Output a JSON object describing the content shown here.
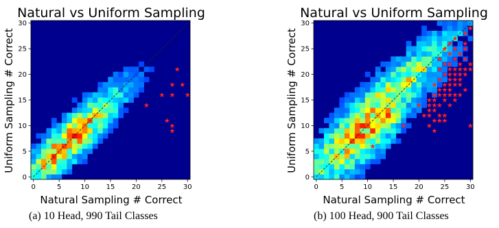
{
  "chart_data": [
    {
      "type": "heatmap",
      "title": "Natural vs Uniform Sampling",
      "xlabel": "Natural Sampling # Correct",
      "ylabel": "Uniform Sampling # Correct",
      "xlim": [
        0,
        30
      ],
      "ylim": [
        0,
        30
      ],
      "xticks": [
        "0",
        "5",
        "10",
        "15",
        "20",
        "25",
        "30"
      ],
      "yticks": [
        "0",
        "5",
        "10",
        "15",
        "20",
        "25",
        "30"
      ],
      "colormap": "jet",
      "diagonal": "dashed y = x",
      "highlight_color": "#ff2020",
      "highlighted_points": [
        {
          "x": 28,
          "y": 21
        },
        {
          "x": 27,
          "y": 18
        },
        {
          "x": 29,
          "y": 18
        },
        {
          "x": 25,
          "y": 16
        },
        {
          "x": 27,
          "y": 16
        },
        {
          "x": 30,
          "y": 16
        },
        {
          "x": 22,
          "y": 14
        },
        {
          "x": 26,
          "y": 11
        },
        {
          "x": 27,
          "y": 10
        },
        {
          "x": 27,
          "y": 9
        }
      ],
      "caption": "(a)  10 Head, 990 Tail Classes"
    },
    {
      "type": "heatmap",
      "title": "Natural vs Uniform Sampling",
      "xlabel": "Natural Sampling # Correct",
      "ylabel": "Uniform Sampling # Correct",
      "xlim": [
        0,
        30
      ],
      "ylim": [
        0,
        30
      ],
      "xticks": [
        "0",
        "5",
        "10",
        "15",
        "20",
        "25",
        "30"
      ],
      "yticks": [
        "0",
        "5",
        "10",
        "15",
        "20",
        "25",
        "30"
      ],
      "colormap": "jet",
      "diagonal": "dashed y = x",
      "highlight_color": "#ff2020",
      "highlighted_points": [
        {
          "x": 30,
          "y": 29
        },
        {
          "x": 29,
          "y": 28
        },
        {
          "x": 27,
          "y": 27
        },
        {
          "x": 26,
          "y": 26
        },
        {
          "x": 29,
          "y": 26
        },
        {
          "x": 25,
          "y": 25
        },
        {
          "x": 27,
          "y": 25
        },
        {
          "x": 29,
          "y": 25
        },
        {
          "x": 26,
          "y": 24
        },
        {
          "x": 28,
          "y": 24
        },
        {
          "x": 24,
          "y": 23
        },
        {
          "x": 27,
          "y": 23
        },
        {
          "x": 29,
          "y": 23
        },
        {
          "x": 25,
          "y": 22
        },
        {
          "x": 26,
          "y": 22
        },
        {
          "x": 28,
          "y": 22
        },
        {
          "x": 30,
          "y": 22
        },
        {
          "x": 24,
          "y": 21
        },
        {
          "x": 26,
          "y": 21
        },
        {
          "x": 27,
          "y": 21
        },
        {
          "x": 28,
          "y": 21
        },
        {
          "x": 29,
          "y": 21
        },
        {
          "x": 30,
          "y": 21
        },
        {
          "x": 25,
          "y": 20
        },
        {
          "x": 26,
          "y": 20
        },
        {
          "x": 27,
          "y": 20
        },
        {
          "x": 28,
          "y": 20
        },
        {
          "x": 29,
          "y": 20
        },
        {
          "x": 24,
          "y": 19
        },
        {
          "x": 26,
          "y": 19
        },
        {
          "x": 27,
          "y": 19
        },
        {
          "x": 28,
          "y": 19
        },
        {
          "x": 23,
          "y": 18
        },
        {
          "x": 25,
          "y": 18
        },
        {
          "x": 26,
          "y": 18
        },
        {
          "x": 27,
          "y": 18
        },
        {
          "x": 28,
          "y": 18
        },
        {
          "x": 24,
          "y": 17
        },
        {
          "x": 25,
          "y": 17
        },
        {
          "x": 26,
          "y": 17
        },
        {
          "x": 29,
          "y": 17
        },
        {
          "x": 23,
          "y": 16
        },
        {
          "x": 24,
          "y": 16
        },
        {
          "x": 25,
          "y": 16
        },
        {
          "x": 26,
          "y": 16
        },
        {
          "x": 27,
          "y": 16
        },
        {
          "x": 28,
          "y": 16
        },
        {
          "x": 22,
          "y": 15
        },
        {
          "x": 23,
          "y": 15
        },
        {
          "x": 25,
          "y": 15
        },
        {
          "x": 27,
          "y": 15
        },
        {
          "x": 20,
          "y": 14
        },
        {
          "x": 22,
          "y": 14
        },
        {
          "x": 23,
          "y": 14
        },
        {
          "x": 24,
          "y": 14
        },
        {
          "x": 26,
          "y": 14
        },
        {
          "x": 22,
          "y": 13
        },
        {
          "x": 23,
          "y": 13
        },
        {
          "x": 21,
          "y": 12
        },
        {
          "x": 22,
          "y": 12
        },
        {
          "x": 24,
          "y": 12
        },
        {
          "x": 25,
          "y": 12
        },
        {
          "x": 23,
          "y": 11
        },
        {
          "x": 24,
          "y": 11
        },
        {
          "x": 25,
          "y": 11
        },
        {
          "x": 22,
          "y": 10
        },
        {
          "x": 17,
          "y": 10
        },
        {
          "x": 30,
          "y": 10
        },
        {
          "x": 23,
          "y": 9
        },
        {
          "x": 11,
          "y": 6
        }
      ],
      "caption": "(b)  100 Head, 900 Tail Classes"
    }
  ]
}
